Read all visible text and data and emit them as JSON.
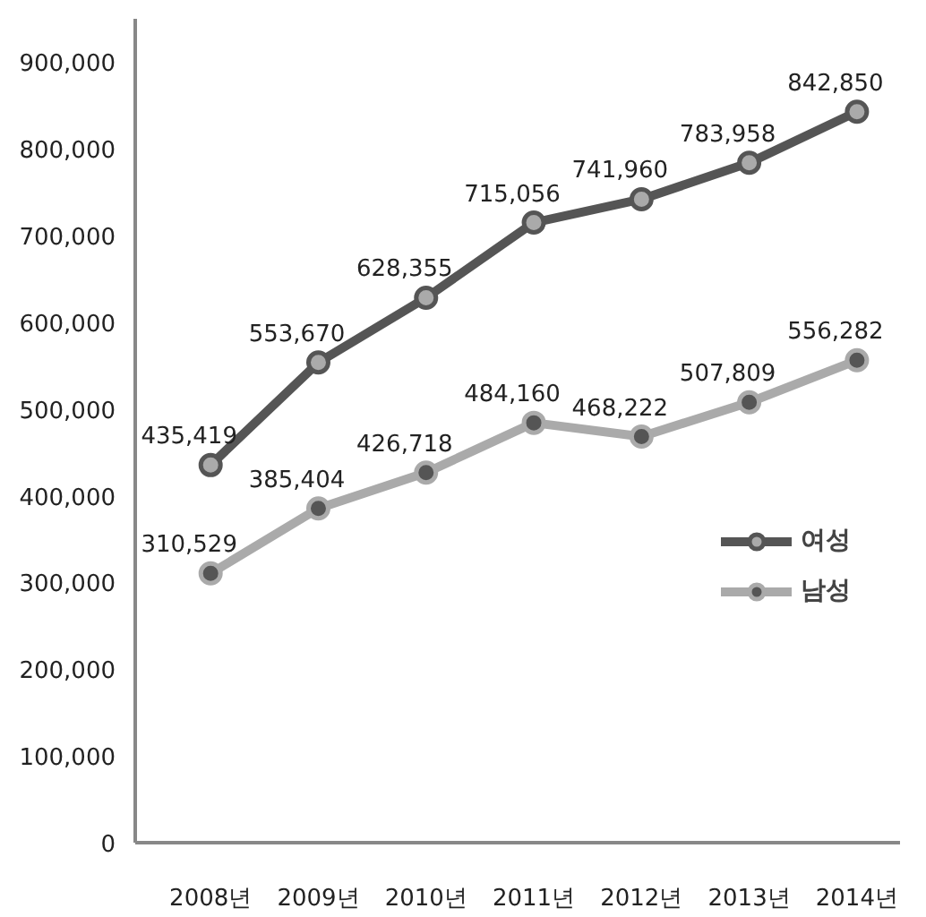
{
  "chart_data": {
    "type": "line",
    "categories": [
      "2008년",
      "2009년",
      "2010년",
      "2011년",
      "2012년",
      "2013년",
      "2014년"
    ],
    "series": [
      {
        "name": "여성",
        "color": "#555555",
        "values": [
          435419,
          553670,
          628355,
          715056,
          741960,
          783958,
          842850
        ],
        "value_labels": [
          "435,419",
          "553,670",
          "628,355",
          "715,056",
          "741,960",
          "783,958",
          "842,850"
        ]
      },
      {
        "name": "남성",
        "color": "#aaaaaa",
        "values": [
          310529,
          385404,
          426718,
          484160,
          468222,
          507809,
          556282
        ],
        "value_labels": [
          "310,529",
          "385,404",
          "426,718",
          "484,160",
          "468,222",
          "507,809",
          "556,282"
        ]
      }
    ],
    "ylim": [
      0,
      950000
    ],
    "yticks": [
      {
        "value": 0,
        "label": "0"
      },
      {
        "value": 100000,
        "label": "100,000"
      },
      {
        "value": 200000,
        "label": "200,000"
      },
      {
        "value": 300000,
        "label": "300,000"
      },
      {
        "value": 400000,
        "label": "400,000"
      },
      {
        "value": 500000,
        "label": "500,000"
      },
      {
        "value": 600000,
        "label": "600,000"
      },
      {
        "value": 700000,
        "label": "700,000"
      },
      {
        "value": 800000,
        "label": "800,000"
      },
      {
        "value": 900000,
        "label": "900,000"
      }
    ],
    "grid": false,
    "legend": "right",
    "marker": "circle",
    "line_style": "solid"
  }
}
